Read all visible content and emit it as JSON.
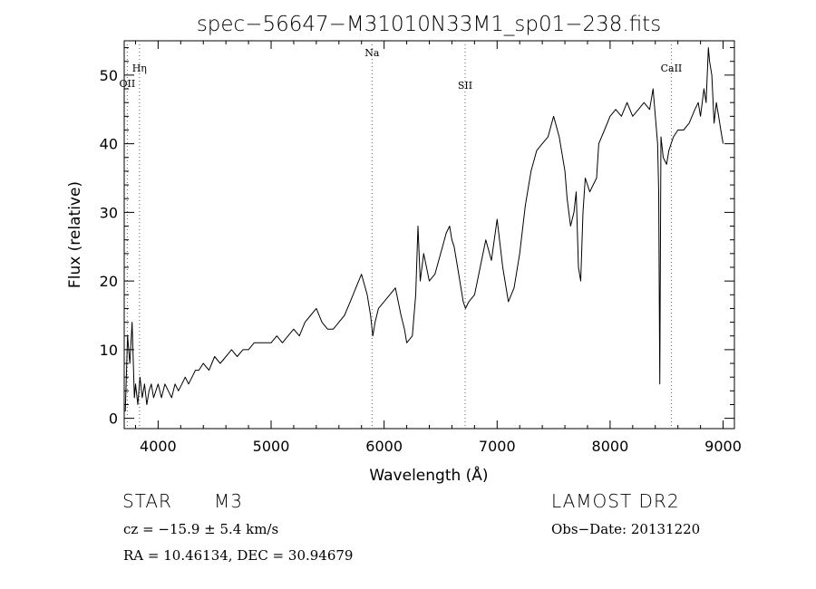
{
  "chart_data": {
    "type": "line",
    "title": "spec−56647−M31010N33M1_sp01−238.fits",
    "xlabel": "Wavelength (Å)",
    "ylabel": "Flux (relative)",
    "xlim": [
      3700,
      9100
    ],
    "ylim": [
      -1.5,
      55
    ],
    "xticks": [
      4000,
      5000,
      6000,
      7000,
      8000,
      9000
    ],
    "yticks": [
      0,
      10,
      20,
      30,
      40,
      50
    ],
    "grid": false,
    "line_color": "#000000",
    "marker_color": "#cc3333",
    "markers": [
      {
        "label": "OII",
        "x": 3727
      },
      {
        "label": "Hη",
        "x": 3835
      },
      {
        "label": "Na",
        "x": 5893
      },
      {
        "label": "SII",
        "x": 6717
      },
      {
        "label": "CaII",
        "x": 8542
      }
    ],
    "series": [
      {
        "x": [
          3710,
          3730,
          3750,
          3770,
          3790,
          3800,
          3820,
          3840,
          3860,
          3880,
          3900,
          3920,
          3940,
          3960,
          3980,
          4000,
          4030,
          4060,
          4090,
          4120,
          4150,
          4180,
          4210,
          4240,
          4270,
          4300,
          4330,
          4360,
          4400,
          4450,
          4500,
          4550,
          4600,
          4650,
          4700,
          4750,
          4800,
          4850,
          4900,
          4950,
          5000,
          5050,
          5100,
          5150,
          5200,
          5250,
          5300,
          5350,
          5400,
          5450,
          5500,
          5550,
          5600,
          5650,
          5700,
          5750,
          5800,
          5850,
          5880,
          5900,
          5920,
          5950,
          6000,
          6050,
          6100,
          6150,
          6180,
          6200,
          6250,
          6280,
          6300,
          6320,
          6350,
          6400,
          6450,
          6500,
          6550,
          6580,
          6600,
          6620,
          6650,
          6700,
          6720,
          6750,
          6800,
          6850,
          6900,
          6950,
          7000,
          7050,
          7100,
          7150,
          7200,
          7250,
          7300,
          7350,
          7400,
          7450,
          7500,
          7550,
          7580,
          7600,
          7620,
          7650,
          7680,
          7700,
          7720,
          7740,
          7760,
          7780,
          7800,
          7820,
          7850,
          7880,
          7900,
          7950,
          8000,
          8050,
          8100,
          8150,
          8200,
          8250,
          8300,
          8350,
          8380,
          8400,
          8420,
          8430,
          8440,
          8450,
          8470,
          8500,
          8520,
          8540,
          8560,
          8600,
          8650,
          8700,
          8750,
          8780,
          8800,
          8830,
          8850,
          8870,
          8880,
          8900,
          8920,
          8940,
          8960,
          8980,
          9000
        ],
        "y": [
          1,
          12,
          8,
          14,
          3,
          5,
          2,
          6,
          3,
          5,
          2,
          4,
          5,
          3,
          4,
          5,
          3,
          5,
          4,
          3,
          5,
          4,
          5,
          6,
          5,
          6,
          7,
          7,
          8,
          7,
          9,
          8,
          9,
          10,
          9,
          10,
          10,
          11,
          11,
          11,
          11,
          12,
          11,
          12,
          13,
          12,
          14,
          15,
          16,
          14,
          13,
          13,
          14,
          15,
          17,
          19,
          21,
          18,
          15,
          12,
          14,
          16,
          17,
          18,
          19,
          15,
          13,
          11,
          12,
          18,
          28,
          20,
          24,
          20,
          21,
          24,
          27,
          28,
          26,
          25,
          22,
          17,
          16,
          17,
          18,
          22,
          26,
          23,
          29,
          22,
          17,
          19,
          24,
          31,
          36,
          39,
          40,
          41,
          44,
          41,
          38,
          36,
          32,
          28,
          30,
          33,
          22,
          20,
          30,
          35,
          34,
          33,
          34,
          35,
          40,
          42,
          44,
          45,
          44,
          46,
          44,
          45,
          46,
          45,
          48,
          44,
          40,
          33,
          5,
          41,
          38,
          37,
          39,
          40,
          41,
          42,
          42,
          43,
          45,
          46,
          44,
          48,
          46,
          54,
          52,
          50,
          43,
          46,
          44,
          42,
          40
        ]
      }
    ]
  },
  "info": {
    "object_type": "STAR",
    "subclass": "M3",
    "survey": "LAMOST DR2",
    "cz_line": "cz = −15.9 ± 5.4 km/s",
    "obs_date": "Obs−Date: 20131220",
    "coords_line": "RA =  10.46134, DEC =  30.94679"
  }
}
